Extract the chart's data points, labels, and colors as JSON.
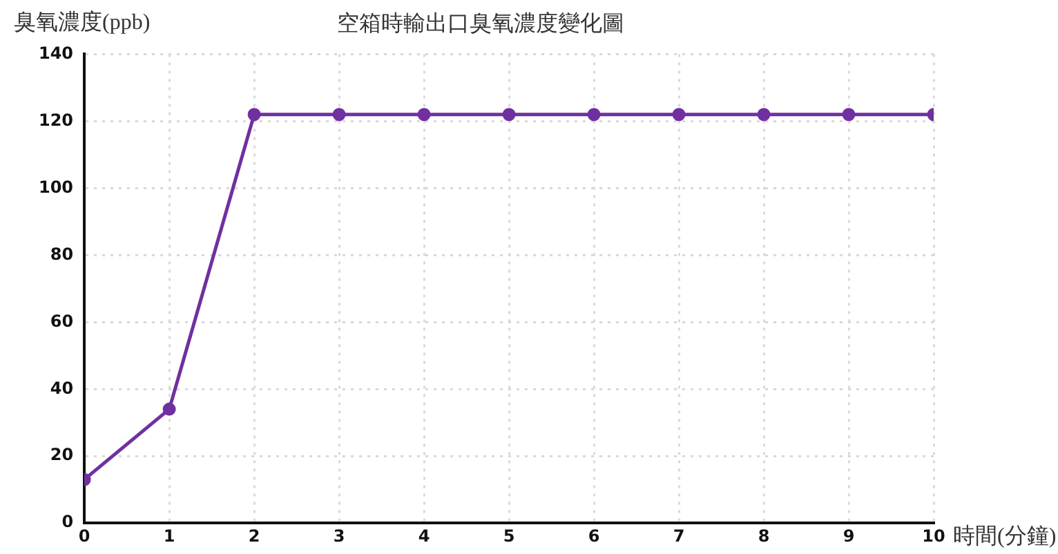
{
  "chart_data": {
    "type": "line",
    "title": "空箱時輸出口臭氧濃度變化圖",
    "xlabel": "時間(分鐘)",
    "ylabel": "臭氧濃度(ppb)",
    "x": [
      0,
      1,
      2,
      3,
      4,
      5,
      6,
      7,
      8,
      9,
      10
    ],
    "series": [
      {
        "color": "#7030a0",
        "values": [
          13,
          34,
          122,
          122,
          122,
          122,
          122,
          122,
          122,
          122,
          122
        ]
      }
    ],
    "xlim": [
      0,
      10
    ],
    "xticks": [
      0,
      1,
      2,
      3,
      4,
      5,
      6,
      7,
      8,
      9,
      10
    ],
    "ylim": [
      0,
      140
    ],
    "yticks": [
      0,
      20,
      40,
      60,
      80,
      100,
      120,
      140
    ],
    "grid": true,
    "legend": false,
    "marker": "circle",
    "line_style": "solid"
  }
}
